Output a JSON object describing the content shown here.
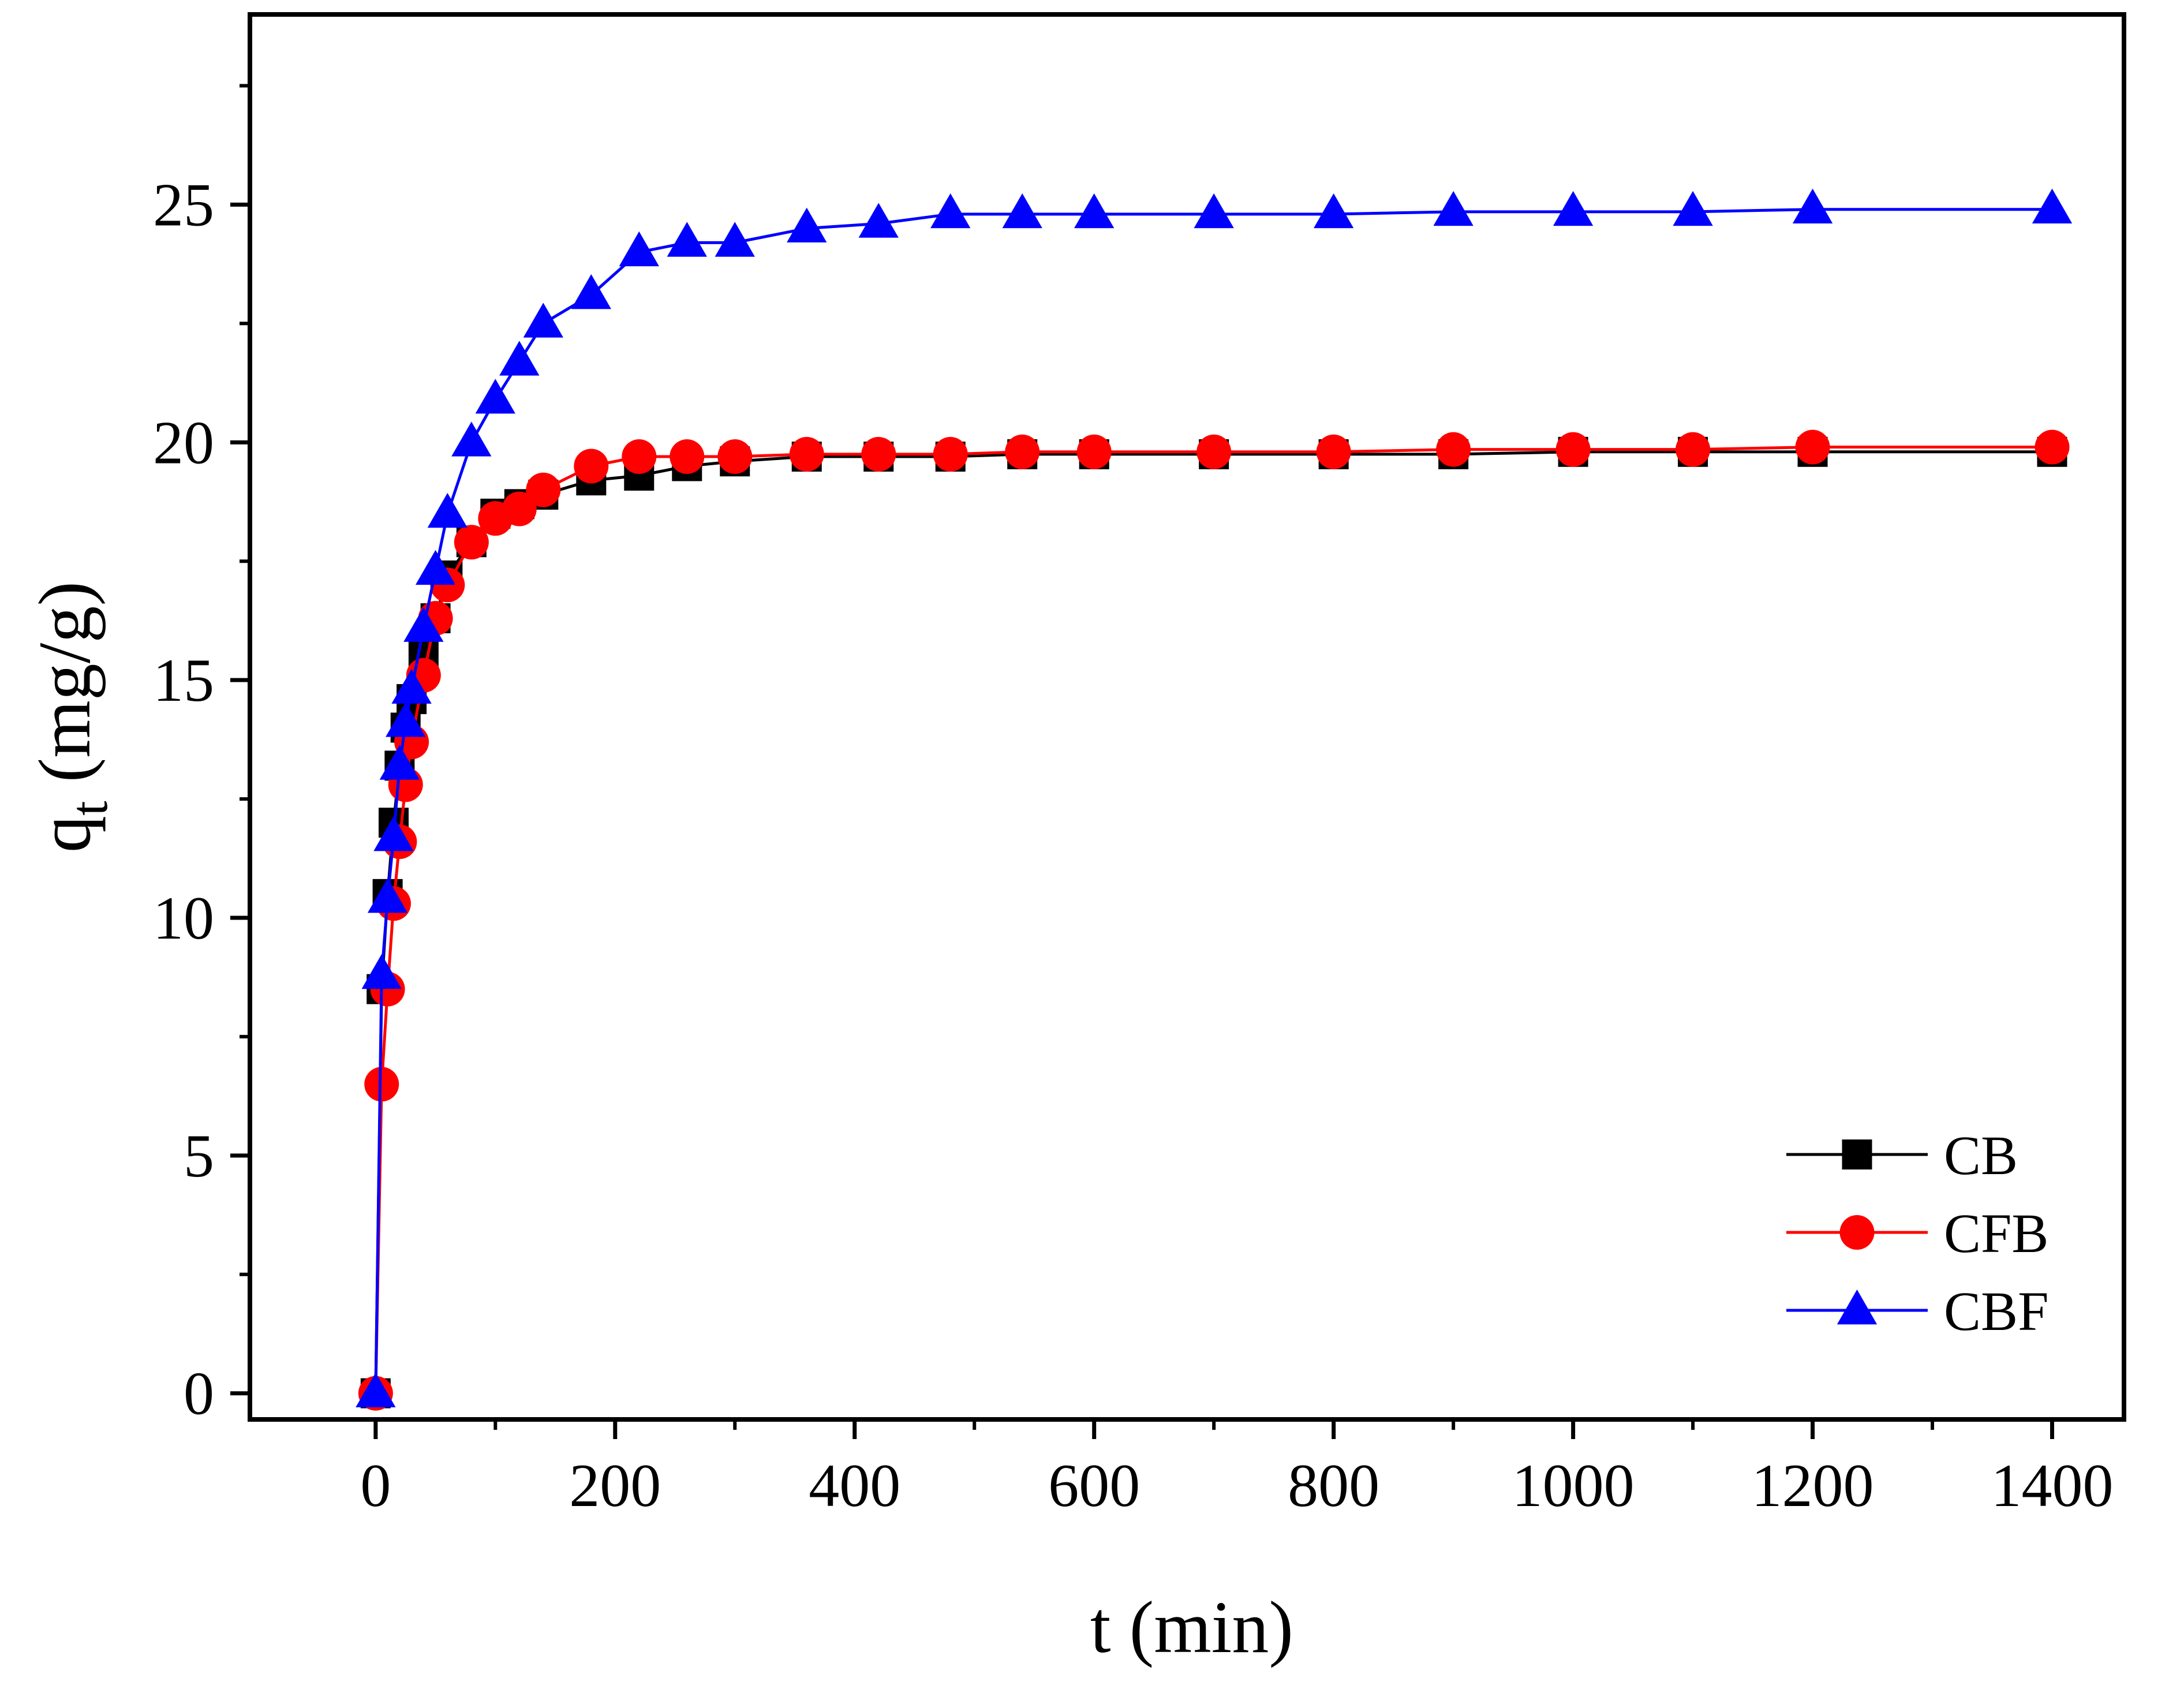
{
  "chart_data": {
    "type": "line",
    "title": "",
    "xlabel": "t (min)",
    "ylabel": {
      "main": "q",
      "subscript": "t",
      "unit": " (mg/g)"
    },
    "xlim": [
      -105,
      1460
    ],
    "ylim": [
      -0.55,
      29
    ],
    "xticks": [
      0,
      200,
      400,
      600,
      800,
      1000,
      1200,
      1400
    ],
    "yticks": [
      0,
      5,
      10,
      15,
      20,
      25
    ],
    "legend_position": "bottom-right",
    "series": [
      {
        "name": "CB",
        "color": "#000000",
        "marker": "square",
        "x": [
          0,
          5,
          10,
          15,
          20,
          25,
          30,
          40,
          50,
          60,
          80,
          100,
          120,
          140,
          180,
          220,
          260,
          300,
          360,
          420,
          480,
          540,
          600,
          700,
          800,
          900,
          1000,
          1100,
          1200,
          1400
        ],
        "y": [
          0,
          8.5,
          10.5,
          12.0,
          13.2,
          14.0,
          14.6,
          15.6,
          16.3,
          17.2,
          17.9,
          18.5,
          18.7,
          18.9,
          19.2,
          19.3,
          19.5,
          19.6,
          19.7,
          19.7,
          19.7,
          19.75,
          19.75,
          19.75,
          19.75,
          19.75,
          19.8,
          19.8,
          19.8,
          19.8
        ]
      },
      {
        "name": "CFB",
        "color": "#ff0000",
        "marker": "circle",
        "x": [
          0,
          5,
          10,
          15,
          20,
          25,
          30,
          40,
          50,
          60,
          80,
          100,
          120,
          140,
          180,
          220,
          260,
          300,
          360,
          420,
          480,
          540,
          600,
          700,
          800,
          900,
          1000,
          1100,
          1200,
          1400
        ],
        "y": [
          0,
          6.5,
          8.5,
          10.3,
          11.6,
          12.8,
          13.7,
          15.1,
          16.3,
          17.0,
          17.9,
          18.4,
          18.6,
          19.0,
          19.5,
          19.7,
          19.7,
          19.7,
          19.75,
          19.75,
          19.75,
          19.8,
          19.8,
          19.8,
          19.8,
          19.85,
          19.85,
          19.85,
          19.9,
          19.9
        ]
      },
      {
        "name": "CBF",
        "color": "#0000ff",
        "marker": "triangle",
        "x": [
          0,
          5,
          10,
          15,
          20,
          25,
          30,
          40,
          50,
          60,
          80,
          100,
          120,
          140,
          180,
          220,
          260,
          300,
          360,
          420,
          480,
          540,
          600,
          700,
          800,
          900,
          1000,
          1100,
          1200,
          1400
        ],
        "y": [
          0,
          8.8,
          10.4,
          11.7,
          13.2,
          14.1,
          14.8,
          16.1,
          17.3,
          18.5,
          20.0,
          20.9,
          21.7,
          22.5,
          23.1,
          24.0,
          24.2,
          24.2,
          24.5,
          24.6,
          24.8,
          24.8,
          24.8,
          24.8,
          24.8,
          24.85,
          24.85,
          24.85,
          24.9,
          24.9
        ]
      }
    ]
  }
}
